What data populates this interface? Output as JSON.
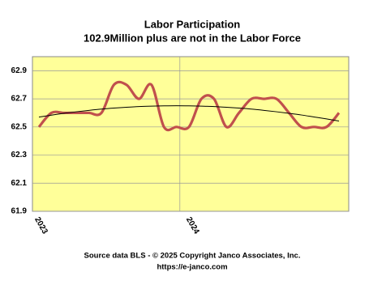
{
  "chart_data": {
    "type": "line",
    "title": "Labor Participation",
    "subtitle": "102.9Million plus are not in the Labor Force",
    "footer": [
      "Source data BLS - © 2025 Copyright Janco Associates, Inc.",
      "https://e-janco.com"
    ],
    "categories": [
      "2023",
      null,
      null,
      null,
      null,
      null,
      null,
      null,
      null,
      null,
      null,
      null,
      "2024",
      null,
      null,
      null,
      null,
      null,
      null,
      null,
      null,
      null,
      null,
      null,
      null
    ],
    "series": [
      {
        "color": "#c0504d",
        "values": [
          62.5,
          62.6,
          62.6,
          62.6,
          62.6,
          62.6,
          62.8,
          62.8,
          62.7,
          62.8,
          62.5,
          62.5,
          62.5,
          62.7,
          62.7,
          62.5,
          62.6,
          62.7,
          62.7,
          62.7,
          62.6,
          62.5,
          62.5,
          62.5,
          62.6
        ]
      }
    ],
    "trendline": {
      "color": "#000000",
      "values": [
        62.57,
        62.584,
        62.597,
        62.608,
        62.618,
        62.627,
        62.634,
        62.64,
        62.645,
        62.648,
        62.65,
        62.651,
        62.65,
        62.648,
        62.645,
        62.64,
        62.634,
        62.627,
        62.618,
        62.608,
        62.597,
        62.585,
        62.571,
        62.557,
        62.542
      ]
    },
    "ylim": [
      61.9,
      63.0
    ],
    "yticks": [
      61.9,
      62.1,
      62.3,
      62.5,
      62.7,
      62.9
    ],
    "background": "#ffff99",
    "grid": true
  }
}
